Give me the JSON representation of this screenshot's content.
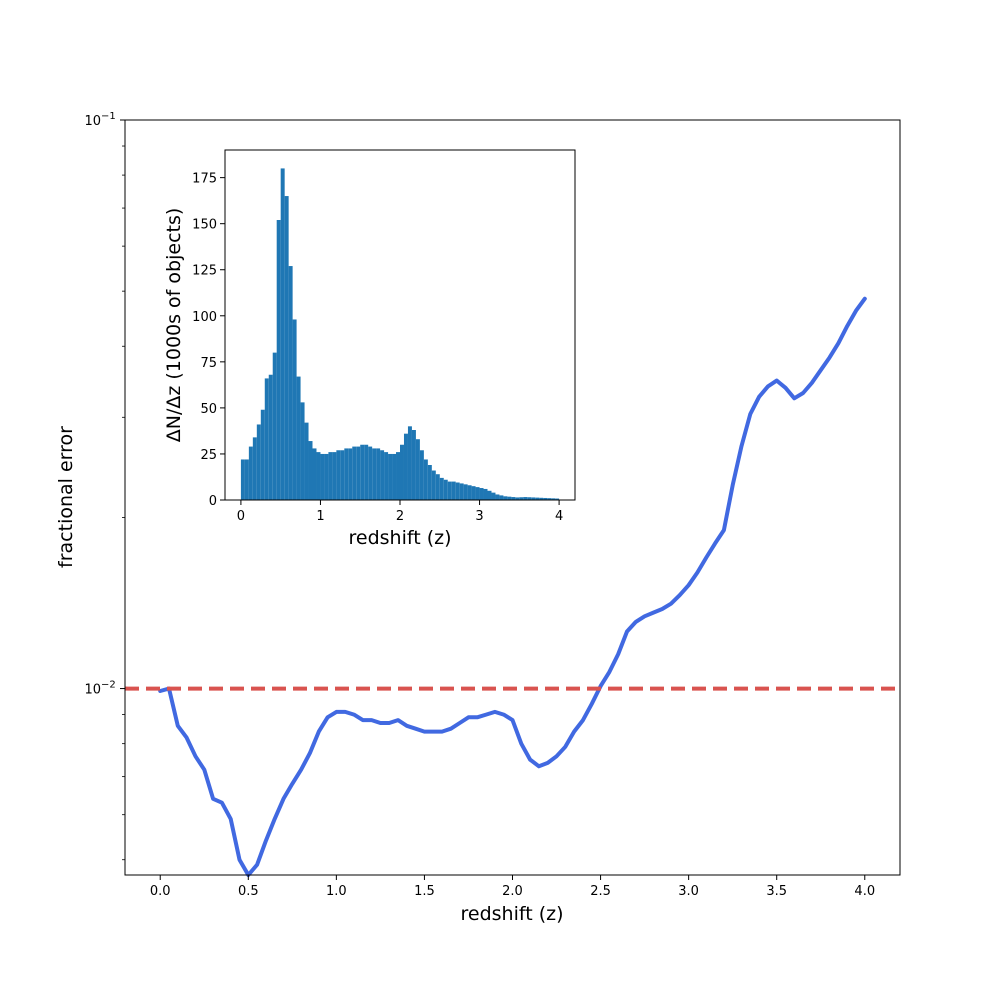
{
  "chart_data": [
    {
      "type": "line",
      "title": "",
      "xlabel": "redshift (z)",
      "ylabel": "fractional error",
      "xlim": [
        -0.2,
        4.2
      ],
      "ylim": [
        0.0047,
        0.1
      ],
      "yscale": "log",
      "xticks": [
        0.0,
        0.5,
        1.0,
        1.5,
        2.0,
        2.5,
        3.0,
        3.5,
        4.0
      ],
      "xtick_labels": [
        "0.0",
        "0.5",
        "1.0",
        "1.5",
        "2.0",
        "2.5",
        "3.0",
        "3.5",
        "4.0"
      ],
      "yticks_major": [
        0.01,
        0.1
      ],
      "ytick_labels": [
        "10",
        "10"
      ],
      "ytick_exponents": [
        "−2",
        "−1"
      ],
      "yticks_minor": [
        0.005,
        0.006,
        0.007,
        0.008,
        0.009,
        0.02,
        0.03,
        0.04,
        0.05,
        0.06,
        0.07,
        0.08,
        0.09
      ],
      "grid": false,
      "series": [
        {
          "color": "#4169e1",
          "x": [
            0.0,
            0.05,
            0.1,
            0.15,
            0.2,
            0.25,
            0.3,
            0.35,
            0.4,
            0.45,
            0.5,
            0.55,
            0.6,
            0.65,
            0.7,
            0.75,
            0.8,
            0.85,
            0.9,
            0.95,
            1.0,
            1.05,
            1.1,
            1.15,
            1.2,
            1.25,
            1.3,
            1.35,
            1.4,
            1.45,
            1.5,
            1.55,
            1.6,
            1.65,
            1.7,
            1.75,
            1.8,
            1.85,
            1.9,
            1.95,
            2.0,
            2.05,
            2.1,
            2.15,
            2.2,
            2.25,
            2.3,
            2.35,
            2.4,
            2.45,
            2.5,
            2.55,
            2.6,
            2.65,
            2.7,
            2.75,
            2.8,
            2.85,
            2.9,
            2.95,
            3.0,
            3.05,
            3.1,
            3.15,
            3.2,
            3.25,
            3.3,
            3.35,
            3.4,
            3.45,
            3.5,
            3.55,
            3.6,
            3.65,
            3.7,
            3.75,
            3.8,
            3.85,
            3.9,
            3.95,
            4.0
          ],
          "y": [
            0.0099,
            0.01,
            0.0086,
            0.0082,
            0.0076,
            0.0072,
            0.0064,
            0.0063,
            0.0059,
            0.005,
            0.0047,
            0.0049,
            0.0054,
            0.0059,
            0.0064,
            0.0068,
            0.0072,
            0.0077,
            0.0084,
            0.0089,
            0.0091,
            0.0091,
            0.009,
            0.0088,
            0.0088,
            0.0087,
            0.0087,
            0.0088,
            0.0086,
            0.0085,
            0.0084,
            0.0084,
            0.0084,
            0.0085,
            0.0087,
            0.0089,
            0.0089,
            0.009,
            0.0091,
            0.009,
            0.0088,
            0.008,
            0.0075,
            0.0073,
            0.0074,
            0.0076,
            0.0079,
            0.0084,
            0.0088,
            0.0094,
            0.0101,
            0.0107,
            0.0115,
            0.0126,
            0.0131,
            0.0134,
            0.0136,
            0.0138,
            0.0141,
            0.0146,
            0.0152,
            0.016,
            0.017,
            0.018,
            0.019,
            0.0228,
            0.0267,
            0.0304,
            0.0326,
            0.034,
            0.0348,
            0.0338,
            0.0324,
            0.0331,
            0.0345,
            0.0363,
            0.0382,
            0.0405,
            0.0434,
            0.0462,
            0.0485
          ]
        }
      ],
      "hline": {
        "y": 0.01,
        "color": "#d9534f",
        "style": "dashed"
      }
    },
    {
      "type": "bar",
      "title": "",
      "xlabel": "redshift (z)",
      "ylabel": "ΔN/Δz (1000s of objects)",
      "xlim": [
        -0.2,
        4.2
      ],
      "ylim": [
        0,
        190
      ],
      "xticks": [
        0,
        1,
        2,
        3,
        4
      ],
      "xtick_labels": [
        "0",
        "1",
        "2",
        "3",
        "4"
      ],
      "yticks": [
        0,
        25,
        50,
        75,
        100,
        125,
        150,
        175
      ],
      "ytick_labels": [
        "0",
        "25",
        "50",
        "75",
        "100",
        "125",
        "150",
        "175"
      ],
      "grid": false,
      "bar_color": "#1f77b4",
      "bin_width": 0.05,
      "bin_starts": [
        0.0,
        0.05,
        0.1,
        0.15,
        0.2,
        0.25,
        0.3,
        0.35,
        0.4,
        0.45,
        0.5,
        0.55,
        0.6,
        0.65,
        0.7,
        0.75,
        0.8,
        0.85,
        0.9,
        0.95,
        1.0,
        1.05,
        1.1,
        1.15,
        1.2,
        1.25,
        1.3,
        1.35,
        1.4,
        1.45,
        1.5,
        1.55,
        1.6,
        1.65,
        1.7,
        1.75,
        1.8,
        1.85,
        1.9,
        1.95,
        2.0,
        2.05,
        2.1,
        2.15,
        2.2,
        2.25,
        2.3,
        2.35,
        2.4,
        2.45,
        2.5,
        2.55,
        2.6,
        2.65,
        2.7,
        2.75,
        2.8,
        2.85,
        2.9,
        2.95,
        3.0,
        3.05,
        3.1,
        3.15,
        3.2,
        3.25,
        3.3,
        3.35,
        3.4,
        3.45,
        3.5,
        3.55,
        3.6,
        3.65,
        3.7,
        3.75,
        3.8,
        3.85,
        3.9,
        3.95
      ],
      "values": [
        22,
        22,
        29,
        34,
        41,
        49,
        66,
        68,
        80,
        152,
        180,
        165,
        127,
        98,
        67,
        53,
        42,
        32,
        28,
        26,
        25,
        25,
        26,
        26,
        27,
        27,
        28,
        28,
        29,
        29,
        30,
        30,
        29,
        28,
        28,
        27,
        26,
        25,
        25,
        26,
        30,
        36,
        40,
        38,
        33,
        27,
        22,
        19,
        16,
        14,
        12,
        11,
        10,
        10,
        9.5,
        9,
        8.5,
        8,
        7.5,
        7,
        6.5,
        6,
        5,
        4,
        3,
        2.5,
        2,
        1.8,
        1.6,
        1.4,
        1.5,
        1.6,
        1.5,
        1.4,
        1.3,
        1.2,
        1.1,
        1.0,
        0.9,
        0.8
      ]
    }
  ]
}
